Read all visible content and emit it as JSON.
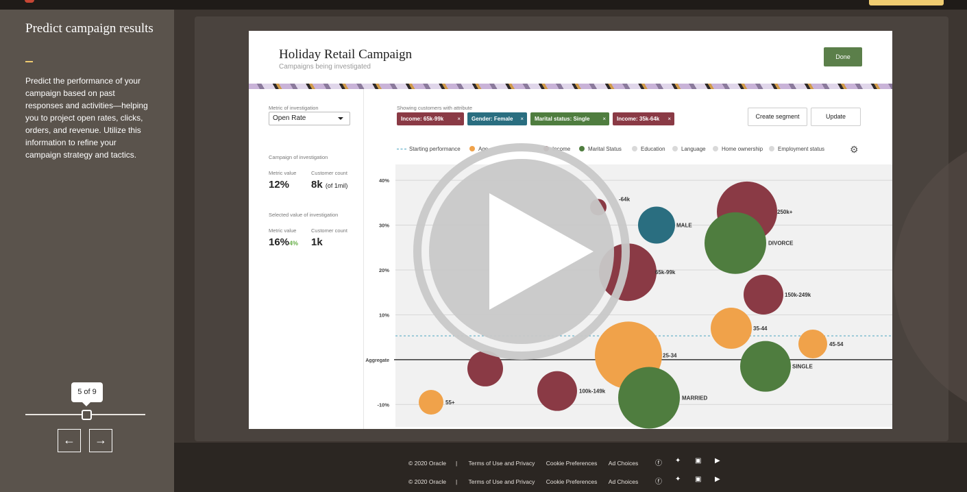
{
  "sidebar": {
    "title": "Predict campaign results",
    "description": "Predict the performance of your campaign based on past responses and activities—helping you to project open rates, clicks, orders, and revenue. Utilize this information to refine your campaign strategy and tactics.",
    "pager": "5 of 9",
    "progress_fraction": 0.5,
    "prev_label": "←",
    "next_label": "→"
  },
  "card": {
    "title": "Holiday Retail Campaign",
    "subtitle": "Campaigns being investigated",
    "done_label": "Done",
    "metric_label": "Metric of investigation",
    "metric_value": "Open Rate",
    "campaign_section": "Campaign of investigation",
    "metric_value_label": "Metric value",
    "customer_count_label": "Customer count",
    "campaign_metric": "12%",
    "campaign_count": "8k",
    "campaign_count_note": "(of 1mil)",
    "selected_section": "Selected value of investigation",
    "selected_metric": "16%",
    "selected_delta": "4%",
    "selected_count": "1k",
    "showing_label": "Showing customers with attribute",
    "chips": [
      {
        "label": "Income: 65k-99k",
        "color": "#8a3a45"
      },
      {
        "label": "Gender: Female",
        "color": "#2a6e80"
      },
      {
        "label": "Marital status: Single",
        "color": "#4f7d3f"
      },
      {
        "label": "Income: 35k-64k",
        "color": "#8a3a45"
      }
    ],
    "chip_close": "×",
    "create_segment_label": "Create segment",
    "update_label": "Update",
    "legend": {
      "starting": "Starting performance",
      "age": "Age",
      "income": "Income",
      "marital": "Marital Status",
      "education": "Education",
      "language": "Language",
      "home": "Home ownership",
      "employment": "Employment status"
    },
    "colors": {
      "age": "#f0a24a",
      "income": "#8a3a45",
      "gender": "#2a6e80",
      "marital": "#4f7d3f",
      "inactive": "#d9d9d9",
      "baseline": "#4aa3c0"
    }
  },
  "chart_data": {
    "type": "scatter",
    "y_ticks": [
      "40%",
      "30%",
      "20%",
      "10%",
      "Aggregate",
      "-10%"
    ],
    "ylim": [
      -15,
      42
    ],
    "aggregate": 0,
    "starting_performance": 5.3,
    "points": [
      {
        "label": "250k+",
        "group": "income",
        "y": 33
      },
      {
        "label": "MALE",
        "group": "gender",
        "y": 30
      },
      {
        "label": "DIVORCE",
        "group": "marital",
        "y": 26
      },
      {
        "label": "65k-99k",
        "group": "income",
        "y": 19.5
      },
      {
        "label": "150k-249k",
        "group": "income",
        "y": 14.5
      },
      {
        "label": "35-44",
        "group": "age",
        "y": 7
      },
      {
        "label": "45-54",
        "group": "age",
        "y": 3.5
      },
      {
        "label": "25-34",
        "group": "age",
        "y": 1
      },
      {
        "label": "SINGLE",
        "group": "marital",
        "y": -1.5
      },
      {
        "label": "",
        "group": "income",
        "y": -2
      },
      {
        "label": "100k-149k",
        "group": "income",
        "y": -7
      },
      {
        "label": "MARRIED",
        "group": "marital",
        "y": -8.5
      },
      {
        "label": "55+",
        "group": "age",
        "y": -9.5
      },
      {
        "label": "-64k",
        "group": "income",
        "y": 34
      }
    ]
  },
  "footer": {
    "copyright": "© 2020 Oracle",
    "terms": "Terms of Use and Privacy",
    "cookies": "Cookie Preferences",
    "adchoices": "Ad Choices"
  }
}
